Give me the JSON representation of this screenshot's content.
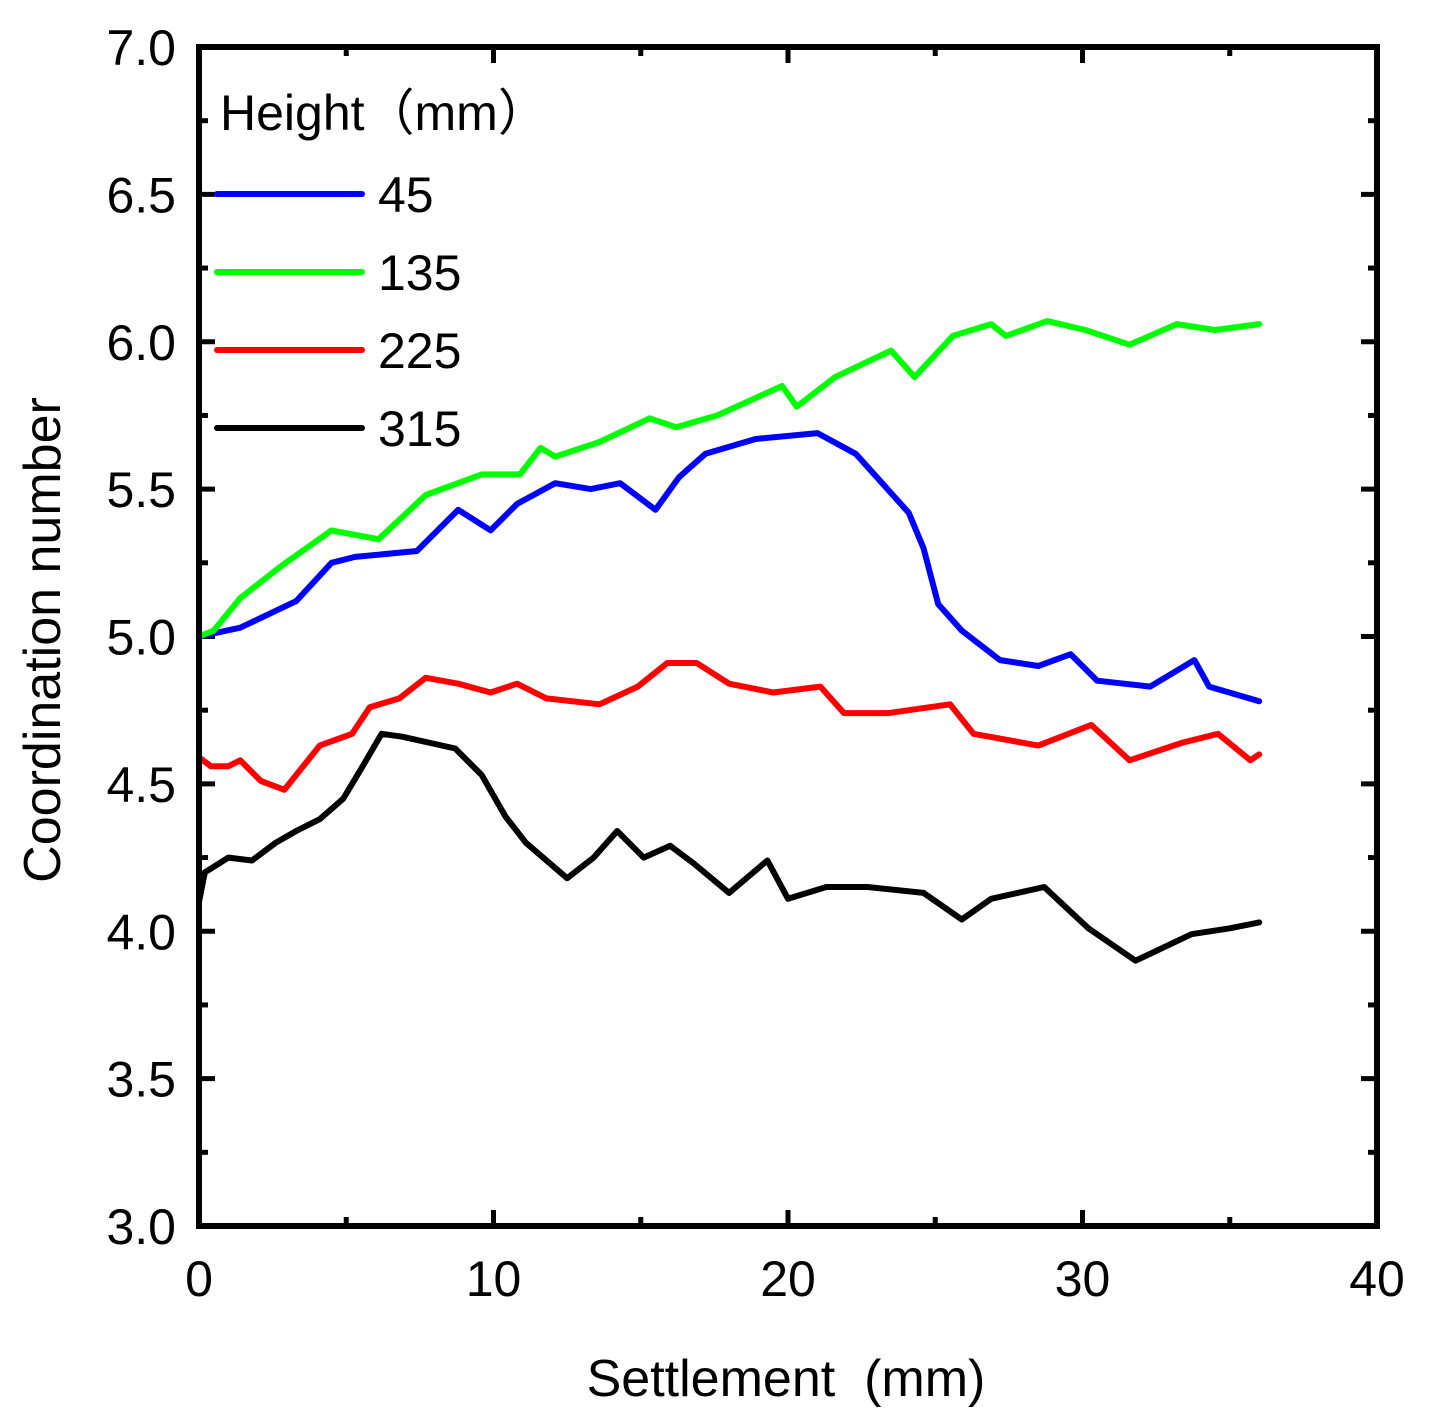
{
  "chart_data": {
    "type": "line",
    "title": "",
    "xlabel": "Settlement  (mm)",
    "ylabel": "Coordination number",
    "xlim": [
      0,
      40
    ],
    "ylim": [
      3.0,
      7.0
    ],
    "xticks": [
      0,
      10,
      20,
      30,
      40
    ],
    "xtick_labels": [
      "0",
      "10",
      "20",
      "30",
      "40"
    ],
    "yticks": [
      3.0,
      3.5,
      4.0,
      4.5,
      5.0,
      5.5,
      6.0,
      6.5,
      7.0
    ],
    "ytick_labels": [
      "3.0",
      "3.5",
      "4.0",
      "4.5",
      "5.0",
      "5.5",
      "6.0",
      "6.5",
      "7.0"
    ],
    "x_minor_step": 5,
    "y_minor_step": 0.25,
    "grid": false,
    "legend": {
      "title": "Height（mm）",
      "placement": "top-left"
    },
    "series": [
      {
        "name": "45",
        "color": "#0000ff",
        "x": [
          0,
          1.4,
          3.3,
          4.5,
          5.3,
          7.4,
          8.8,
          9.9,
          10.8,
          12.1,
          13.3,
          14.3,
          15.5,
          16.3,
          17.2,
          18.9,
          21,
          22.3,
          24.1,
          24.6,
          25.1,
          25.9,
          27.2,
          28.5,
          29.6,
          30.5,
          32.3,
          33.8,
          34.3,
          36
        ],
        "y": [
          5.0,
          5.03,
          5.12,
          5.25,
          5.27,
          5.29,
          5.43,
          5.36,
          5.45,
          5.52,
          5.5,
          5.52,
          5.43,
          5.54,
          5.62,
          5.67,
          5.69,
          5.62,
          5.42,
          5.3,
          5.11,
          5.02,
          4.92,
          4.9,
          4.94,
          4.85,
          4.83,
          4.92,
          4.83,
          4.78
        ]
      },
      {
        "name": "135",
        "color": "#00ff00",
        "x": [
          0,
          0.5,
          1.4,
          2.8,
          4.5,
          6.1,
          7.7,
          9.6,
          10.9,
          11.6,
          12.1,
          13.6,
          15.3,
          16.2,
          17.6,
          19.8,
          20.3,
          21.6,
          23.5,
          24.3,
          25.6,
          26.9,
          27.4,
          28.8,
          30.1,
          31.6,
          33.2,
          34.5,
          36
        ],
        "y": [
          5.0,
          5.02,
          5.13,
          5.24,
          5.36,
          5.33,
          5.48,
          5.55,
          5.55,
          5.64,
          5.61,
          5.66,
          5.74,
          5.71,
          5.75,
          5.85,
          5.78,
          5.88,
          5.97,
          5.88,
          6.02,
          6.06,
          6.02,
          6.07,
          6.04,
          5.99,
          6.06,
          6.04,
          6.06
        ]
      },
      {
        "name": "225",
        "color": "#ff0000",
        "x": [
          0,
          0.4,
          1.0,
          1.4,
          2.1,
          2.9,
          4.1,
          5.2,
          5.8,
          6.8,
          7.7,
          8.8,
          9.9,
          10.8,
          11.8,
          13.6,
          14.9,
          15.9,
          16.9,
          18,
          19.5,
          21.1,
          21.9,
          23.4,
          25.5,
          26.3,
          28.5,
          30.3,
          31.6,
          33.4,
          34.6,
          35.7,
          36
        ],
        "y": [
          4.59,
          4.56,
          4.56,
          4.58,
          4.51,
          4.48,
          4.63,
          4.67,
          4.76,
          4.79,
          4.86,
          4.84,
          4.81,
          4.84,
          4.79,
          4.77,
          4.83,
          4.91,
          4.91,
          4.84,
          4.81,
          4.83,
          4.74,
          4.74,
          4.77,
          4.67,
          4.63,
          4.7,
          4.58,
          4.64,
          4.67,
          4.58,
          4.6
        ]
      },
      {
        "name": "315",
        "color": "#000000",
        "x": [
          0,
          0.2,
          1,
          1.8,
          2.6,
          3.3,
          4.1,
          4.9,
          5.5,
          6.2,
          6.9,
          8.7,
          9.6,
          10.4,
          11.1,
          12.5,
          13.4,
          14.2,
          15.1,
          16,
          16.8,
          18,
          19.3,
          20,
          21.3,
          22.7,
          24.6,
          25.9,
          26.9,
          28.7,
          30.2,
          31.8,
          33.7,
          35,
          36
        ],
        "y": [
          4.1,
          4.2,
          4.25,
          4.24,
          4.3,
          4.34,
          4.38,
          4.45,
          4.55,
          4.67,
          4.66,
          4.62,
          4.53,
          4.39,
          4.3,
          4.18,
          4.25,
          4.34,
          4.25,
          4.29,
          4.23,
          4.13,
          4.24,
          4.11,
          4.15,
          4.15,
          4.13,
          4.04,
          4.11,
          4.15,
          4.01,
          3.9,
          3.99,
          4.01,
          4.03
        ]
      }
    ]
  }
}
